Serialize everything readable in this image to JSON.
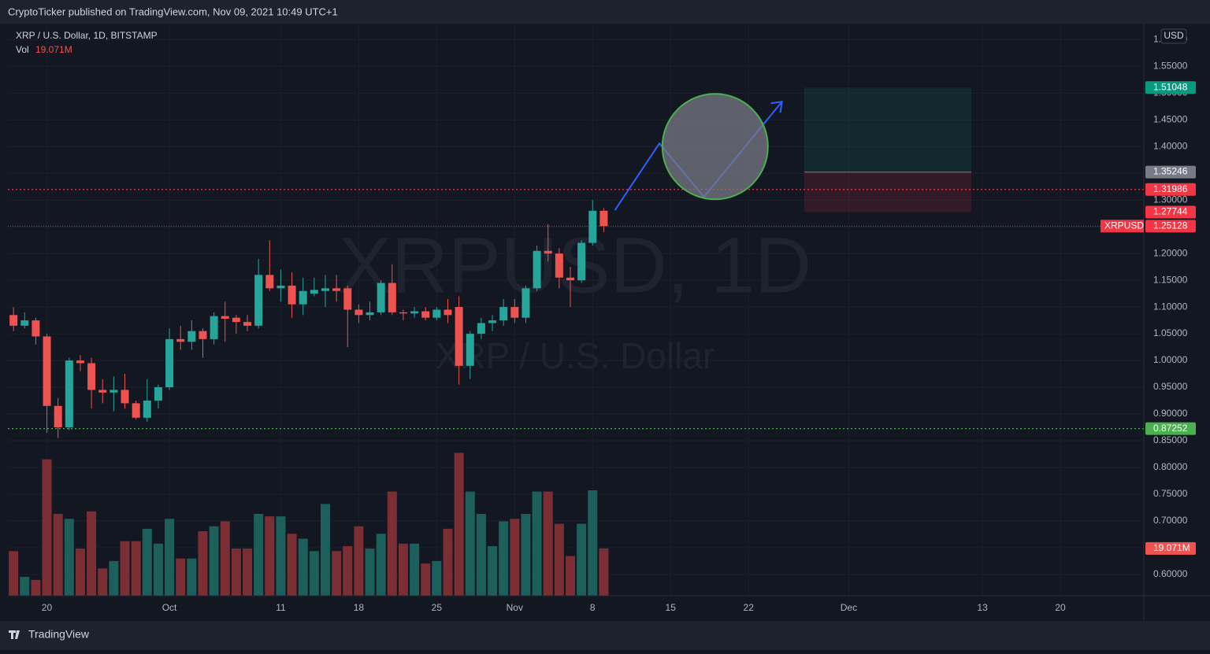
{
  "header": {
    "text": "CryptoTicker published on TradingView.com, Nov 09, 2021 10:49 UTC+1"
  },
  "footer": {
    "brand": "TradingView"
  },
  "chart_data": {
    "type": "candlestick",
    "symbol_title": "XRP / U.S. Dollar, 1D, BITSTAMP",
    "volume_name": "Vol",
    "volume_last_label": "19.071M",
    "watermark": "XRPUSD, 1D",
    "watermark_subtitle": "XRP / U.S. Dollar",
    "currency": "USD",
    "x": [
      "2021-09-17",
      "2021-09-18",
      "2021-09-19",
      "2021-09-20",
      "2021-09-21",
      "2021-09-22",
      "2021-09-23",
      "2021-09-24",
      "2021-09-25",
      "2021-09-26",
      "2021-09-27",
      "2021-09-28",
      "2021-09-29",
      "2021-09-30",
      "2021-10-01",
      "2021-10-02",
      "2021-10-03",
      "2021-10-04",
      "2021-10-05",
      "2021-10-06",
      "2021-10-07",
      "2021-10-08",
      "2021-10-09",
      "2021-10-10",
      "2021-10-11",
      "2021-10-12",
      "2021-10-13",
      "2021-10-14",
      "2021-10-15",
      "2021-10-16",
      "2021-10-17",
      "2021-10-18",
      "2021-10-19",
      "2021-10-20",
      "2021-10-21",
      "2021-10-22",
      "2021-10-23",
      "2021-10-24",
      "2021-10-25",
      "2021-10-26",
      "2021-10-27",
      "2021-10-28",
      "2021-10-29",
      "2021-10-30",
      "2021-10-31",
      "2021-11-01",
      "2021-11-02",
      "2021-11-03",
      "2021-11-04",
      "2021-11-05",
      "2021-11-06",
      "2021-11-07",
      "2021-11-08",
      "2021-11-09"
    ],
    "open": [
      1.085,
      1.065,
      1.075,
      1.045,
      0.915,
      0.875,
      1.0,
      0.995,
      0.945,
      0.94,
      0.945,
      0.92,
      0.893,
      0.925,
      0.95,
      1.04,
      1.035,
      1.055,
      1.04,
      1.083,
      1.08,
      1.072,
      1.065,
      1.16,
      1.135,
      1.14,
      1.105,
      1.125,
      1.13,
      1.135,
      1.135,
      1.095,
      1.085,
      1.09,
      1.145,
      1.09,
      1.088,
      1.092,
      1.08,
      1.095,
      1.1,
      0.99,
      1.05,
      1.07,
      1.075,
      1.1,
      1.08,
      1.135,
      1.205,
      1.2,
      1.155,
      1.15,
      1.22,
      1.28
    ],
    "high": [
      1.1,
      1.09,
      1.08,
      1.05,
      0.93,
      1.005,
      1.01,
      1.005,
      0.965,
      0.97,
      0.975,
      0.925,
      0.965,
      0.955,
      1.06,
      1.065,
      1.075,
      1.06,
      1.09,
      1.11,
      1.085,
      1.085,
      1.19,
      1.225,
      1.17,
      1.165,
      1.155,
      1.155,
      1.16,
      1.16,
      1.14,
      1.105,
      1.11,
      1.15,
      1.18,
      1.095,
      1.1,
      1.1,
      1.1,
      1.115,
      1.12,
      1.055,
      1.08,
      1.085,
      1.115,
      1.115,
      1.14,
      1.215,
      1.255,
      1.21,
      1.175,
      1.225,
      1.3,
      1.285
    ],
    "low": [
      1.055,
      1.06,
      1.03,
      0.865,
      0.855,
      0.87,
      0.98,
      0.91,
      0.92,
      0.905,
      0.91,
      0.89,
      0.885,
      0.91,
      0.945,
      1.02,
      1.02,
      1.005,
      1.03,
      1.035,
      1.05,
      1.055,
      1.06,
      1.13,
      1.11,
      1.08,
      1.085,
      1.12,
      1.1,
      1.11,
      1.025,
      1.07,
      1.075,
      1.085,
      1.085,
      1.075,
      1.08,
      1.075,
      1.075,
      1.07,
      0.955,
      0.965,
      1.04,
      1.055,
      1.065,
      1.07,
      1.07,
      1.13,
      1.185,
      1.135,
      1.1,
      1.145,
      1.215,
      1.24
    ],
    "close": [
      1.065,
      1.075,
      1.045,
      0.915,
      0.875,
      1.0,
      0.995,
      0.945,
      0.94,
      0.945,
      0.92,
      0.893,
      0.925,
      0.95,
      1.04,
      1.035,
      1.055,
      1.04,
      1.083,
      1.078,
      1.072,
      1.065,
      1.16,
      1.135,
      1.14,
      1.105,
      1.13,
      1.132,
      1.135,
      1.13,
      1.095,
      1.085,
      1.09,
      1.145,
      1.09,
      1.088,
      1.092,
      1.08,
      1.095,
      1.085,
      0.99,
      1.05,
      1.07,
      1.075,
      1.1,
      1.08,
      1.135,
      1.205,
      1.2,
      1.155,
      1.15,
      1.22,
      1.28,
      1.25128
    ],
    "volume": [
      18,
      7.6,
      6.4,
      55,
      33,
      31,
      19,
      34,
      11,
      14,
      22,
      22,
      27,
      21,
      31,
      15,
      15,
      26,
      28,
      30,
      19,
      19,
      33,
      32,
      32,
      25,
      23,
      18,
      37,
      18,
      20,
      28,
      19,
      25,
      42,
      21,
      21,
      13,
      14,
      27,
      57.6,
      42,
      33,
      20,
      30,
      31,
      33,
      42,
      42,
      29,
      16,
      29,
      42.5,
      19.071
    ],
    "up_color": "#26a69a",
    "down_color": "#ef5350",
    "volume_up_color": "#1d5f5b",
    "volume_down_color": "#7b2f35",
    "xlim": [
      "2021-09-16",
      "2021-12-27"
    ],
    "xticks": [
      {
        "value": "2021-09-20",
        "label": "20"
      },
      {
        "value": "2021-10-01",
        "label": "Oct"
      },
      {
        "value": "2021-10-11",
        "label": "11"
      },
      {
        "value": "2021-10-18",
        "label": "18"
      },
      {
        "value": "2021-10-25",
        "label": "25"
      },
      {
        "value": "2021-11-01",
        "label": "Nov"
      },
      {
        "value": "2021-11-08",
        "label": "8"
      },
      {
        "value": "2021-11-15",
        "label": "15"
      },
      {
        "value": "2021-11-22",
        "label": "22"
      },
      {
        "value": "2021-12-01",
        "label": "Dec"
      },
      {
        "value": "2021-12-13",
        "label": "13"
      },
      {
        "value": "2021-12-20",
        "label": "20"
      }
    ],
    "ylim": [
      0.56,
      1.63
    ],
    "yticks": [
      {
        "value": 0.6,
        "label": "0.60000"
      },
      {
        "value": 0.65,
        "label": "0.65000"
      },
      {
        "value": 0.7,
        "label": "0.70000"
      },
      {
        "value": 0.75,
        "label": "0.75000"
      },
      {
        "value": 0.8,
        "label": "0.80000"
      },
      {
        "value": 0.85,
        "label": "0.85000"
      },
      {
        "value": 0.9,
        "label": "0.90000"
      },
      {
        "value": 0.95,
        "label": "0.95000"
      },
      {
        "value": 1.0,
        "label": "1.00000"
      },
      {
        "value": 1.05,
        "label": "1.05000"
      },
      {
        "value": 1.1,
        "label": "1.10000"
      },
      {
        "value": 1.15,
        "label": "1.15000"
      },
      {
        "value": 1.2,
        "label": "1.20000"
      },
      {
        "value": 1.25,
        "label": "1.25000"
      },
      {
        "value": 1.3,
        "label": "1.30000"
      },
      {
        "value": 1.35,
        "label": "1.35000"
      },
      {
        "value": 1.4,
        "label": "1.40000"
      },
      {
        "value": 1.45,
        "label": "1.45000"
      },
      {
        "value": 1.5,
        "label": "1.50000"
      },
      {
        "value": 1.55,
        "label": "1.55000"
      },
      {
        "value": 1.6,
        "label": "1.60000"
      }
    ],
    "volume_ylim": [
      0,
      72
    ],
    "grid": true,
    "lines": [
      {
        "value": 1.31986,
        "color": "#f23645"
      },
      {
        "value": 0.87252,
        "color": "#4caf50"
      },
      {
        "value": 1.25128,
        "color": "#f23645"
      }
    ],
    "price_labels": [
      {
        "value": 1.51048,
        "color": "#089981"
      },
      {
        "value": 1.35246,
        "color": "#787b86"
      },
      {
        "value": 1.31986,
        "color": "#f23645"
      },
      {
        "value": 1.27744,
        "color": "#f23645"
      },
      {
        "value": 1.25128,
        "color": "#f23645",
        "name": "XRPUSD"
      },
      {
        "value": 0.87252,
        "color": "#4caf50"
      }
    ],
    "position": {
      "start": "2021-11-27",
      "end": "2021-12-12",
      "target": 1.51048,
      "entry": 1.35246,
      "stop": 1.27744
    },
    "path_drawing": {
      "color": "#2962ff",
      "x": [
        "2021-11-10",
        "2021-11-14",
        "2021-11-18",
        "2021-11-25"
      ],
      "y": [
        1.281,
        1.406,
        1.306,
        1.484
      ]
    },
    "circle": {
      "x": "2021-11-19",
      "y": 1.4,
      "color": "#4caf50"
    }
  }
}
